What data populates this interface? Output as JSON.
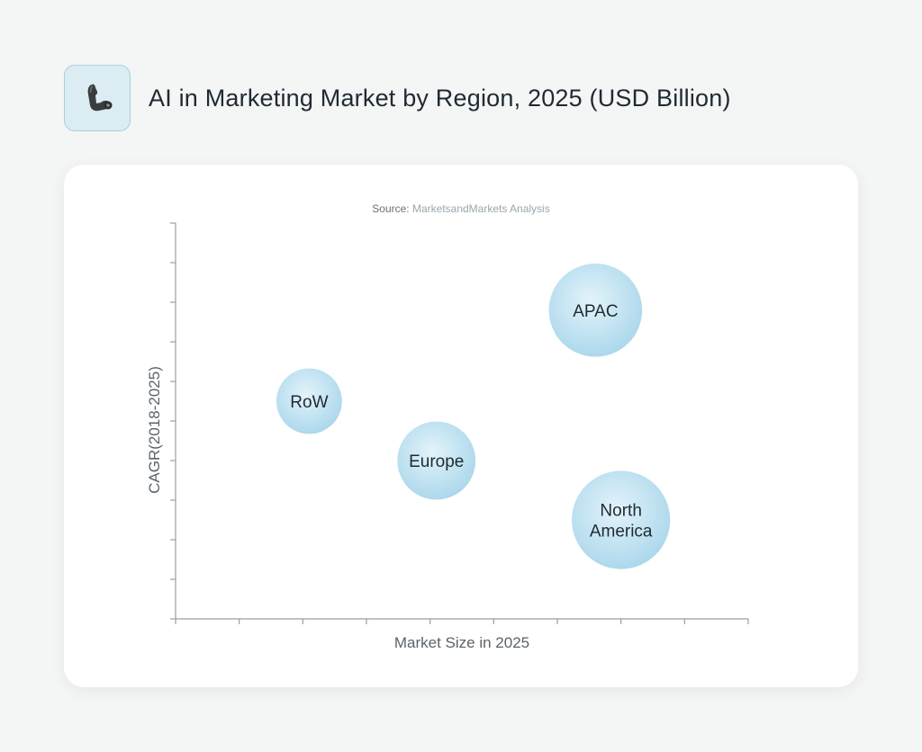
{
  "header": {
    "title": "AI in Marketing Market by Region, 2025 (USD Billion)",
    "icon": "flexed-arm-icon"
  },
  "source": {
    "prefix": "Source:",
    "value": "MarketsandMarkets Analysis"
  },
  "colors": {
    "bubble_light": "#e3f3fb",
    "bubble_dark": "#a8d6ea",
    "axis": "#9a9fa3"
  },
  "chart_data": {
    "type": "scatter",
    "title": "AI in Marketing Market by Region, 2025 (USD Billion)",
    "xlabel": "Market Size in 2025",
    "ylabel": "CAGR(2018-2025)",
    "xlim": [
      0,
      9
    ],
    "ylim": [
      0,
      10
    ],
    "x_ticks": 9,
    "y_ticks": 10,
    "grid": false,
    "points": [
      {
        "label": "RoW",
        "lines": [
          "RoW"
        ],
        "x": 2.1,
        "y": 5.5,
        "size": 0.52
      },
      {
        "label": "Europe",
        "lines": [
          "Europe"
        ],
        "x": 4.1,
        "y": 4.0,
        "size": 0.62
      },
      {
        "label": "APAC",
        "lines": [
          "APAC"
        ],
        "x": 6.6,
        "y": 7.8,
        "size": 0.74
      },
      {
        "label": "North America",
        "lines": [
          "North",
          "America"
        ],
        "x": 7.0,
        "y": 2.5,
        "size": 0.78
      }
    ]
  }
}
